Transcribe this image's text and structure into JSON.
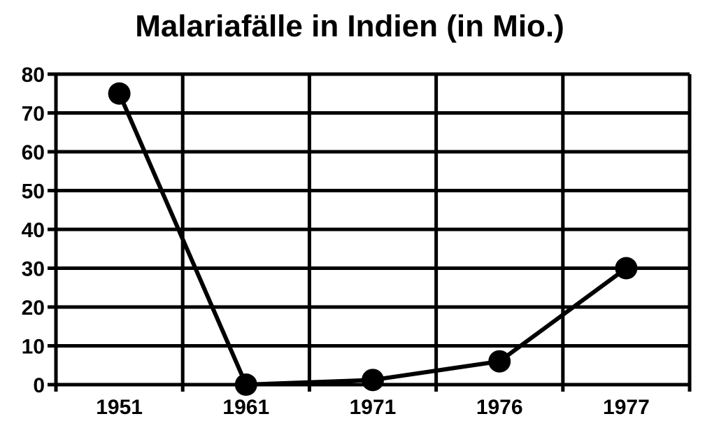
{
  "chart_data": {
    "type": "line",
    "title": "Malariafälle in Indien (in Mio.)",
    "categories": [
      "1951",
      "1961",
      "1971",
      "1976",
      "1977"
    ],
    "series": [
      {
        "values": [
          75,
          0,
          1.2,
          6,
          30
        ]
      }
    ],
    "ylim": [
      0,
      80
    ],
    "yticks": [
      0,
      10,
      20,
      30,
      40,
      50,
      60,
      70,
      80
    ],
    "grid": true,
    "colors": {
      "line": "#000000",
      "marker": "#000000",
      "grid": "#000000",
      "background": "#ffffff"
    }
  }
}
